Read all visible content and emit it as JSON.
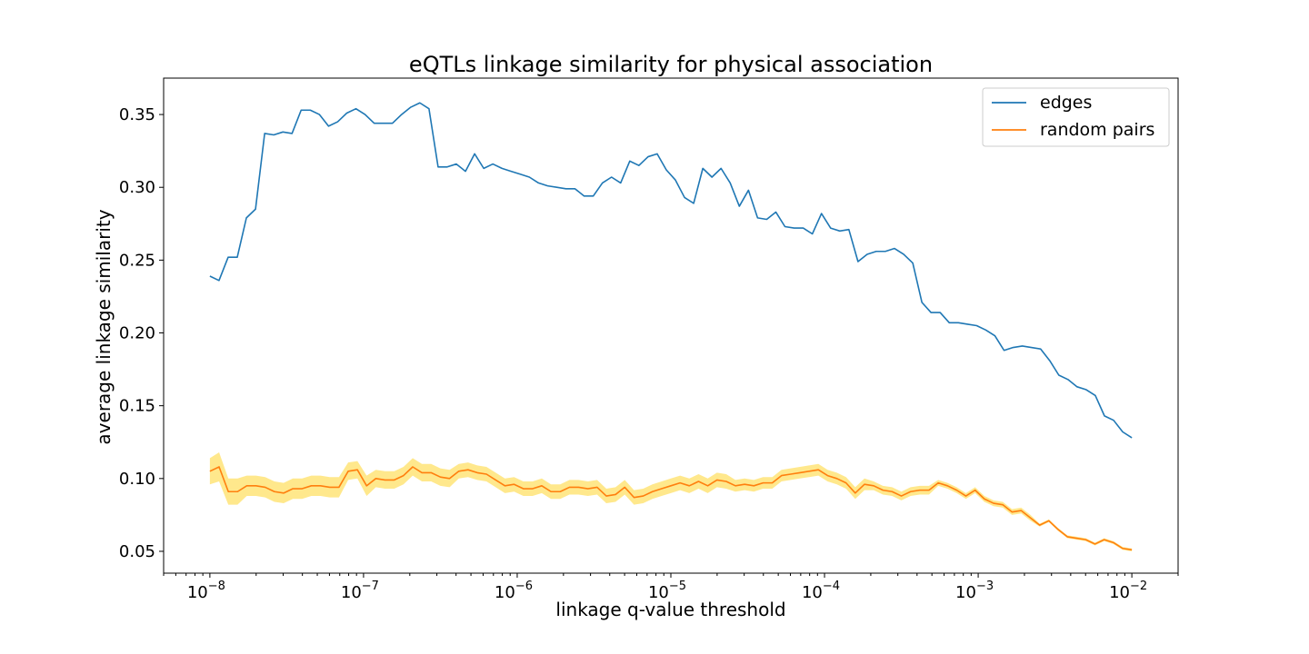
{
  "chart_data": {
    "type": "line",
    "title": "eQTLs linkage similarity for physical association",
    "xlabel": "linkage q-value threshold",
    "ylabel": "average linkage similarity",
    "xscale": "log",
    "xlim": [
      5e-09,
      0.02
    ],
    "ylim": [
      0.035,
      0.375
    ],
    "xticks": [
      {
        "value": 1e-08,
        "base": "10",
        "exp": "−8"
      },
      {
        "value": 1e-07,
        "base": "10",
        "exp": "−7"
      },
      {
        "value": 1e-06,
        "base": "10",
        "exp": "−6"
      },
      {
        "value": 1e-05,
        "base": "10",
        "exp": "−5"
      },
      {
        "value": 0.0001,
        "base": "10",
        "exp": "−4"
      },
      {
        "value": 0.001,
        "base": "10",
        "exp": "−3"
      },
      {
        "value": 0.01,
        "base": "10",
        "exp": "−2"
      }
    ],
    "yticks": [
      "0.05",
      "0.10",
      "0.15",
      "0.20",
      "0.25",
      "0.30",
      "0.35"
    ],
    "grid": false,
    "legend_position": "top-right",
    "x_log_range": [
      -8,
      -2
    ],
    "series": [
      {
        "name": "edges",
        "color": "#1f77b4",
        "values": [
          0.239,
          0.236,
          0.252,
          0.252,
          0.279,
          0.285,
          0.337,
          0.336,
          0.338,
          0.337,
          0.353,
          0.353,
          0.35,
          0.342,
          0.345,
          0.351,
          0.354,
          0.35,
          0.344,
          0.344,
          0.344,
          0.35,
          0.355,
          0.358,
          0.354,
          0.314,
          0.314,
          0.316,
          0.311,
          0.323,
          0.313,
          0.316,
          0.313,
          0.311,
          0.309,
          0.307,
          0.303,
          0.301,
          0.3,
          0.299,
          0.299,
          0.294,
          0.294,
          0.303,
          0.307,
          0.303,
          0.318,
          0.315,
          0.321,
          0.323,
          0.312,
          0.305,
          0.293,
          0.289,
          0.313,
          0.307,
          0.313,
          0.303,
          0.287,
          0.298,
          0.279,
          0.278,
          0.283,
          0.273,
          0.272,
          0.272,
          0.268,
          0.282,
          0.272,
          0.27,
          0.271,
          0.249,
          0.254,
          0.256,
          0.256,
          0.258,
          0.254,
          0.248,
          0.221,
          0.214,
          0.214,
          0.207,
          0.207,
          0.206,
          0.205,
          0.202,
          0.198,
          0.188,
          0.19,
          0.191,
          0.19,
          0.189,
          0.181,
          0.171,
          0.168,
          0.163,
          0.161,
          0.157,
          0.143,
          0.14,
          0.132,
          0.128
        ]
      },
      {
        "name": "random pairs",
        "color": "#ff7f0e",
        "band_color": "#ffe066",
        "values": [
          0.105,
          0.108,
          0.091,
          0.091,
          0.095,
          0.095,
          0.094,
          0.091,
          0.09,
          0.093,
          0.093,
          0.095,
          0.095,
          0.094,
          0.094,
          0.105,
          0.106,
          0.095,
          0.1,
          0.099,
          0.099,
          0.102,
          0.108,
          0.104,
          0.104,
          0.101,
          0.1,
          0.105,
          0.106,
          0.104,
          0.103,
          0.099,
          0.095,
          0.096,
          0.093,
          0.093,
          0.095,
          0.091,
          0.091,
          0.094,
          0.094,
          0.093,
          0.094,
          0.088,
          0.089,
          0.094,
          0.087,
          0.088,
          0.091,
          0.093,
          0.095,
          0.097,
          0.095,
          0.098,
          0.095,
          0.099,
          0.098,
          0.095,
          0.096,
          0.095,
          0.097,
          0.097,
          0.102,
          0.103,
          0.104,
          0.105,
          0.106,
          0.102,
          0.1,
          0.097,
          0.09,
          0.096,
          0.095,
          0.092,
          0.091,
          0.088,
          0.091,
          0.092,
          0.092,
          0.097,
          0.095,
          0.092,
          0.088,
          0.092,
          0.086,
          0.083,
          0.082,
          0.077,
          0.078,
          0.073,
          0.068,
          0.071,
          0.065,
          0.06,
          0.059,
          0.058,
          0.055,
          0.058,
          0.056,
          0.052,
          0.051
        ],
        "band_halfwidth": [
          0.009,
          0.01,
          0.009,
          0.009,
          0.007,
          0.007,
          0.007,
          0.007,
          0.007,
          0.007,
          0.007,
          0.007,
          0.007,
          0.007,
          0.007,
          0.006,
          0.006,
          0.007,
          0.006,
          0.006,
          0.006,
          0.006,
          0.006,
          0.006,
          0.006,
          0.006,
          0.006,
          0.005,
          0.005,
          0.005,
          0.005,
          0.005,
          0.005,
          0.005,
          0.005,
          0.005,
          0.005,
          0.005,
          0.005,
          0.005,
          0.005,
          0.005,
          0.005,
          0.005,
          0.005,
          0.005,
          0.005,
          0.005,
          0.005,
          0.005,
          0.005,
          0.005,
          0.005,
          0.005,
          0.005,
          0.005,
          0.005,
          0.004,
          0.004,
          0.004,
          0.004,
          0.004,
          0.004,
          0.004,
          0.004,
          0.004,
          0.004,
          0.004,
          0.004,
          0.004,
          0.004,
          0.004,
          0.003,
          0.003,
          0.003,
          0.003,
          0.003,
          0.003,
          0.003,
          0.002,
          0.002,
          0.002,
          0.002,
          0.002,
          0.002,
          0.002,
          0.002,
          0.002,
          0.002,
          0.002,
          0.001,
          0.001,
          0.001,
          0.001,
          0.001,
          0.001,
          0.001,
          0.001,
          0.001,
          0.001,
          0.001
        ]
      }
    ]
  }
}
